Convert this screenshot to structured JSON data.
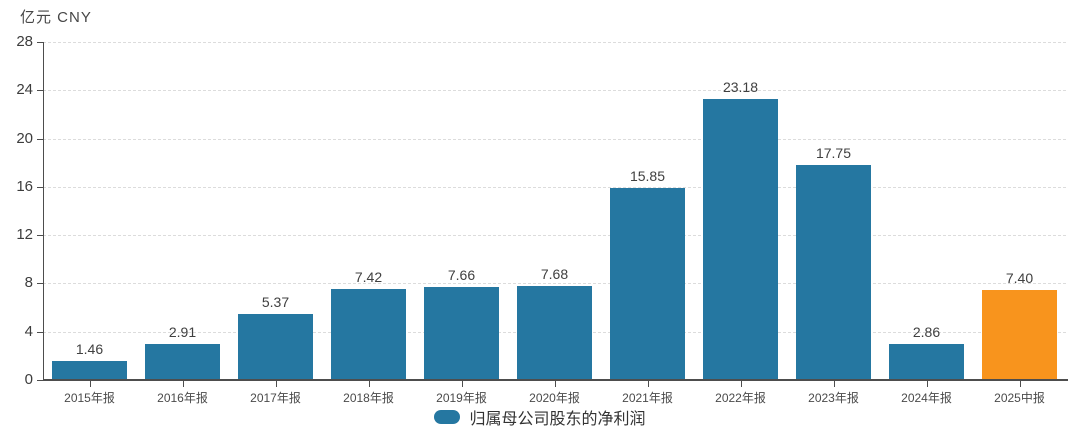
{
  "unit_label": "亿元 CNY",
  "legend": {
    "label": "归属母公司股东的净利润"
  },
  "colors": {
    "bar": "#2577A1",
    "highlight_bar": "#F8941D",
    "axis": "#4d4d4d",
    "gridline": "#dcdcdc",
    "value_label": "#404040",
    "tick_label": "#3c3c3c"
  },
  "chart_data": {
    "type": "bar",
    "title": "亿元 CNY",
    "categories": [
      "2015年报",
      "2016年报",
      "2017年报",
      "2018年报",
      "2019年报",
      "2020年报",
      "2021年报",
      "2022年报",
      "2023年报",
      "2024年报",
      "2025中报"
    ],
    "values": [
      1.46,
      2.91,
      5.37,
      7.42,
      7.66,
      7.68,
      15.85,
      23.18,
      17.75,
      2.86,
      7.4
    ],
    "value_labels": [
      "1.46",
      "2.91",
      "5.37",
      "7.42",
      "7.66",
      "7.68",
      "15.85",
      "23.18",
      "17.75",
      "2.86",
      "7.40"
    ],
    "highlight_index": 10,
    "xlabel": "",
    "ylabel": "亿元 CNY",
    "ylim": [
      0,
      28
    ],
    "yticks": [
      0,
      4,
      8,
      12,
      16,
      20,
      24,
      28
    ],
    "grid": true,
    "legend_entries": [
      "归属母公司股东的净利润"
    ],
    "legend_position": "bottom-center"
  }
}
